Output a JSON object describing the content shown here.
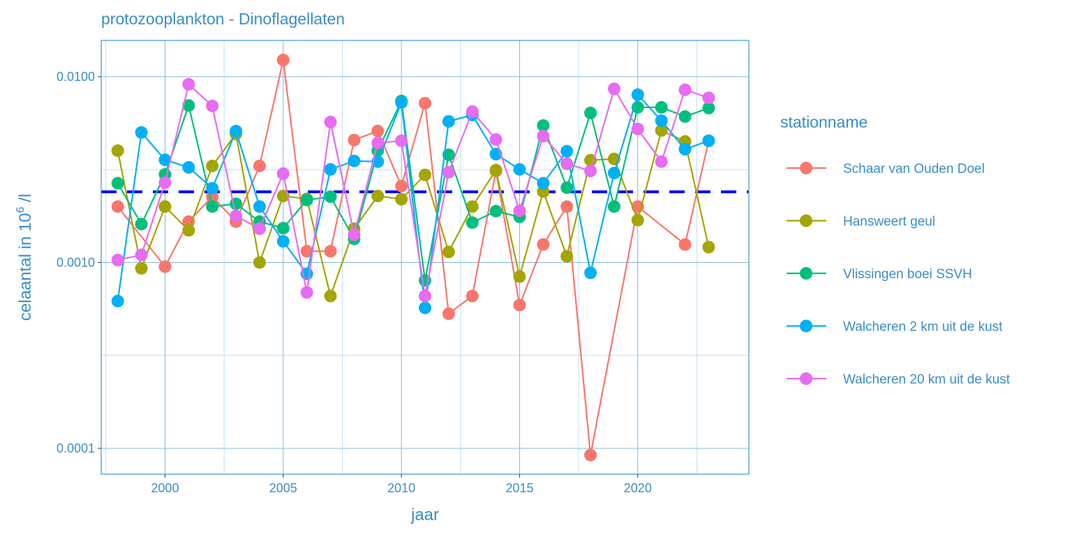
{
  "chart_data": {
    "type": "line",
    "title": "protozooplankton - Dinoflagellaten",
    "xlabel": "jaar",
    "ylabel": "celaantal in  10^6 /l",
    "ylabel_parts": {
      "pre": "celaantal in  10",
      "sup": "6",
      "post": " /l"
    },
    "y_scale": "log",
    "xlim": [
      1997.3,
      2024.7
    ],
    "ylim": [
      7.26e-05,
      0.01567
    ],
    "x_ticks": [
      2000,
      2005,
      2010,
      2015,
      2020
    ],
    "x_tick_labels": [
      "2000",
      "2005",
      "2010",
      "2015",
      "2020"
    ],
    "y_ticks": [
      0.0001,
      0.001,
      0.01
    ],
    "y_tick_labels": [
      "0.0001",
      "0.0010",
      "0.0100"
    ],
    "grid": true,
    "legend_title": "stationname",
    "legend_position": "right",
    "reference_line": {
      "value": 0.0024,
      "color": "#0000ff",
      "style": "dashed"
    },
    "x": [
      1998,
      1999,
      2000,
      2001,
      2002,
      2003,
      2004,
      2005,
      2006,
      2007,
      2008,
      2009,
      2010,
      2011,
      2012,
      2013,
      2014,
      2015,
      2016,
      2017,
      2018,
      2019,
      2020,
      2021,
      2022,
      2023
    ],
    "series": [
      {
        "name": "Schaar van Ouden Doel",
        "color": "#f8766d",
        "values": [
          0.002,
          null,
          0.00095,
          0.00166,
          0.00226,
          0.00166,
          0.00331,
          0.0123,
          0.00115,
          0.00115,
          0.00456,
          0.0051,
          0.00258,
          0.0072,
          0.00053,
          0.00066,
          0.00311,
          0.00059,
          0.00125,
          0.002,
          9.2e-05,
          null,
          0.002,
          null,
          0.00125,
          0.00452
        ]
      },
      {
        "name": "Hansweert geul",
        "color": "#a3a500",
        "values": [
          0.004,
          0.00093,
          0.002,
          0.00149,
          0.00331,
          0.00492,
          0.001,
          0.00228,
          0.0022,
          0.00066,
          0.00152,
          0.00228,
          0.00219,
          0.00296,
          0.00114,
          0.002,
          0.00314,
          0.00084,
          0.00241,
          0.00108,
          0.00355,
          0.00361,
          0.00169,
          0.00514,
          0.00448,
          0.00121
        ]
      },
      {
        "name": "Vlissingen boei SSVH",
        "color": "#00bf7d",
        "values": [
          0.00267,
          0.00161,
          0.00298,
          0.007,
          0.002,
          0.00207,
          0.00166,
          0.00153,
          0.00217,
          0.00226,
          0.00134,
          0.004,
          0.0074,
          0.0008,
          0.0038,
          0.00164,
          0.00189,
          0.00176,
          0.00546,
          0.00253,
          0.00638,
          0.002,
          0.00684,
          0.00684,
          0.0061,
          0.00678
        ]
      },
      {
        "name": "Walcheren 2 km uit de kust",
        "color": "#00b0f6",
        "values": [
          0.00062,
          0.00501,
          0.00357,
          0.00325,
          0.00251,
          0.0051,
          0.002,
          0.0013,
          0.00087,
          0.00317,
          0.00352,
          0.00349,
          0.00726,
          0.00057,
          0.00575,
          0.00622,
          0.00383,
          0.00317,
          0.00267,
          0.00397,
          0.00088,
          0.00303,
          0.008,
          0.0058,
          0.00407,
          0.00452
        ]
      },
      {
        "name": "Walcheren 20 km uit de kust",
        "color": "#e76bf3",
        "values": [
          0.00103,
          0.0011,
          0.00269,
          0.0091,
          0.00696,
          0.00178,
          0.00152,
          0.00301,
          0.00069,
          0.0057,
          0.00141,
          0.0044,
          0.00452,
          0.00066,
          0.00306,
          0.00649,
          0.00459,
          0.0019,
          0.00479,
          0.0034,
          0.00311,
          0.0086,
          0.00523,
          0.00349,
          0.0085,
          0.0077
        ]
      }
    ]
  }
}
